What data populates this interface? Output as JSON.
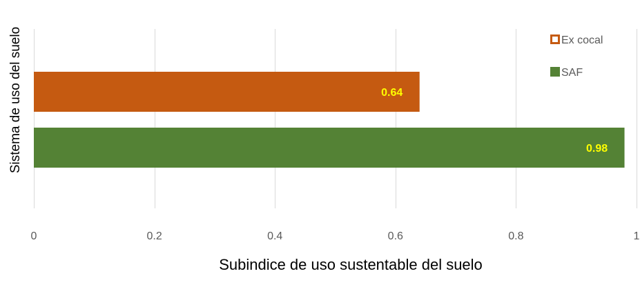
{
  "chart_data": {
    "type": "bar",
    "orientation": "horizontal",
    "series": [
      {
        "name": "Ex cocal",
        "value": 0.64,
        "label": "0.64",
        "color": "#c55a11",
        "legend_style": "hollow"
      },
      {
        "name": "SAF",
        "value": 0.98,
        "label": "0.98",
        "color": "#548235",
        "legend_style": "filled"
      }
    ],
    "data_label_color": "#ffff00",
    "xlabel": "Subindice de uso sustentable del suelo",
    "ylabel": "Sistema de uso del suelo",
    "xlim": [
      0,
      1
    ],
    "xticks": [
      0,
      0.2,
      0.4,
      0.6,
      0.8,
      1
    ],
    "xtick_labels": [
      "0",
      "0.2",
      "0.4",
      "0.6",
      "0.8",
      "1"
    ],
    "grid": true,
    "legend_position": "top-right"
  }
}
